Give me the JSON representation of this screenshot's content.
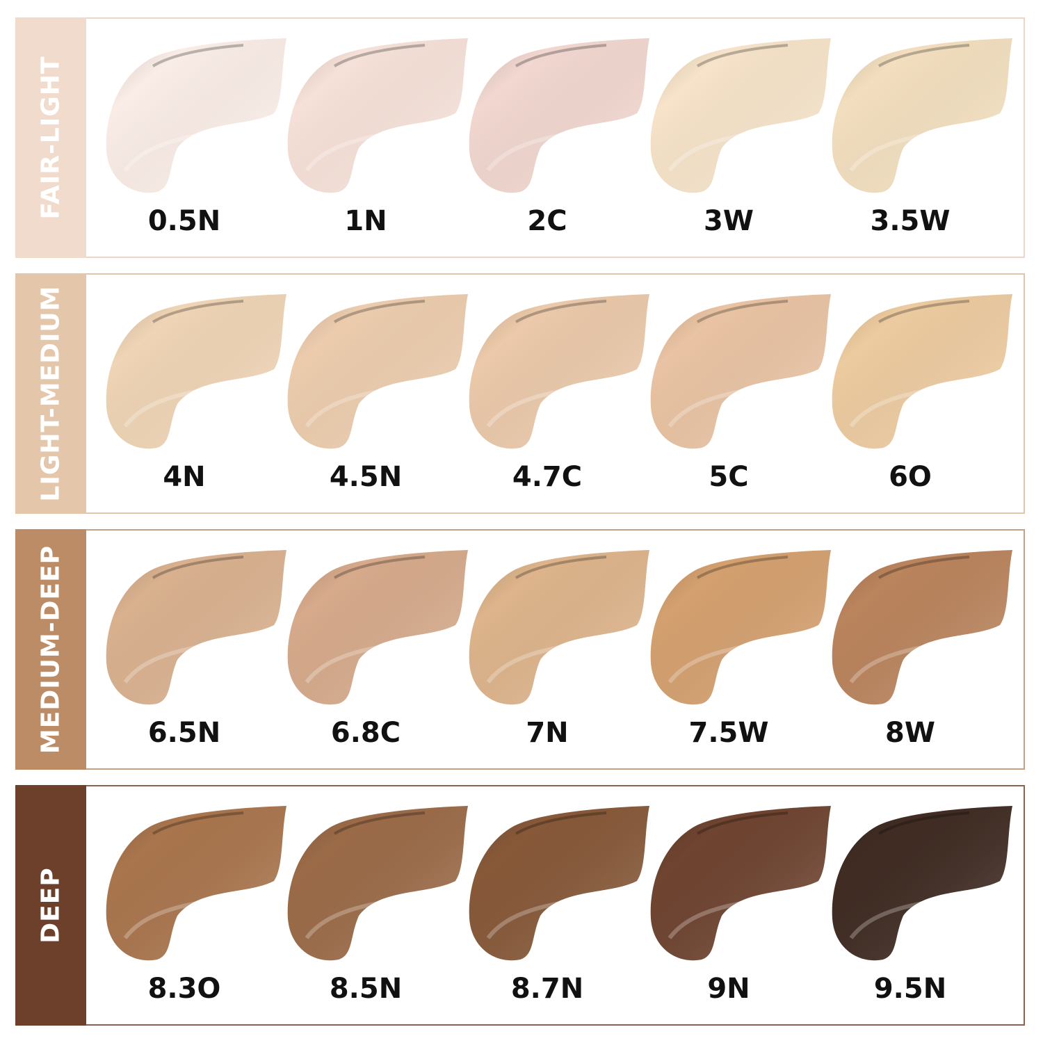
{
  "groups": [
    {
      "name": "FAIR-LIGHT",
      "band_color": "#f1dbcc",
      "border_color": "#ecd6c8",
      "shades": [
        {
          "code": "0.5N",
          "color": "#faede7"
        },
        {
          "code": "1N",
          "color": "#f6e1d8"
        },
        {
          "code": "2C",
          "color": "#f1d7cf"
        },
        {
          "code": "3W",
          "color": "#f6e3c9"
        },
        {
          "code": "3.5W",
          "color": "#f3dfbf"
        }
      ]
    },
    {
      "name": "LIGHT-MEDIUM",
      "band_color": "#e4c6aa",
      "border_color": "#e1c6ab",
      "shades": [
        {
          "code": "4N",
          "color": "#efd4b5"
        },
        {
          "code": "4.5N",
          "color": "#ecccad"
        },
        {
          "code": "4.7C",
          "color": "#ebc9aa"
        },
        {
          "code": "5C",
          "color": "#e9c3a3"
        },
        {
          "code": "6O",
          "color": "#edcba0"
        }
      ]
    },
    {
      "name": "MEDIUM-DEEP",
      "band_color": "#bb8c66",
      "border_color": "#c4a184",
      "shades": [
        {
          "code": "6.5N",
          "color": "#d9b18f"
        },
        {
          "code": "6.8C",
          "color": "#d6aa8b"
        },
        {
          "code": "7N",
          "color": "#ddb48b"
        },
        {
          "code": "7.5W",
          "color": "#d4a06f"
        },
        {
          "code": "8W",
          "color": "#ba845d"
        }
      ]
    },
    {
      "name": "DEEP",
      "band_color": "#6c402b",
      "border_color": "#8a6450",
      "shades": [
        {
          "code": "8.3O",
          "color": "#a9754d"
        },
        {
          "code": "8.5N",
          "color": "#9b6b48"
        },
        {
          "code": "8.7N",
          "color": "#875939"
        },
        {
          "code": "9N",
          "color": "#6f4431"
        },
        {
          "code": "9.5N",
          "color": "#402c23"
        }
      ]
    }
  ]
}
